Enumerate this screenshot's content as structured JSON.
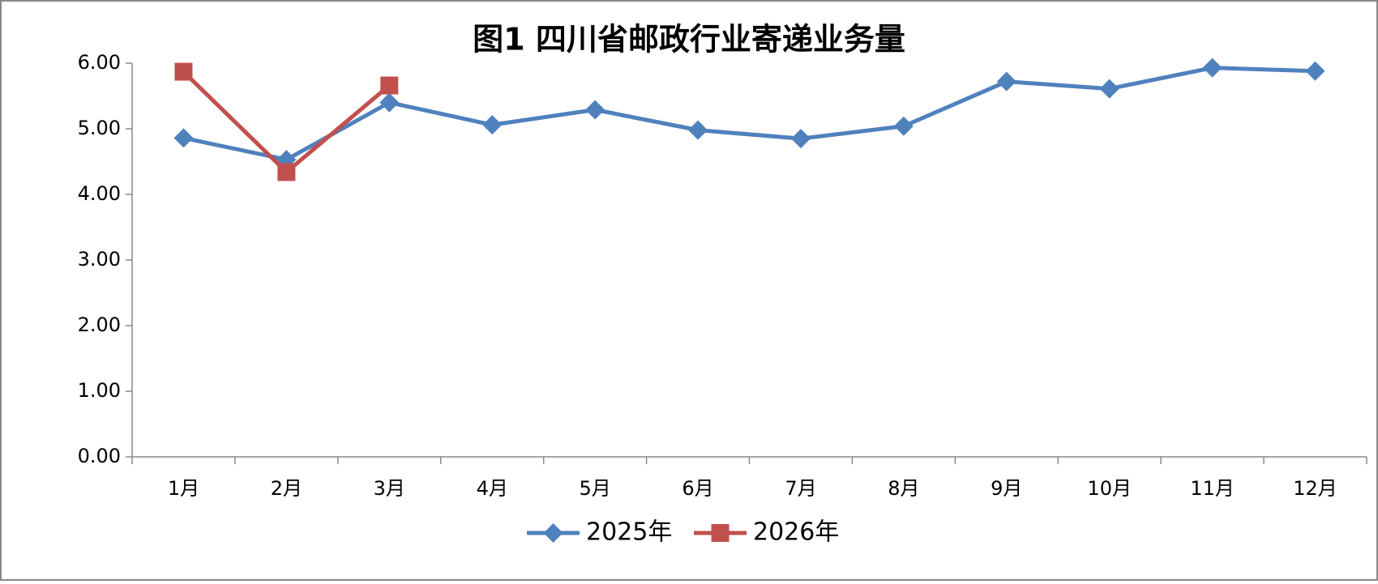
{
  "chart_data": {
    "type": "line",
    "title": "图1  四川省邮政行业寄递业务量",
    "categories": [
      "1月",
      "2月",
      "3月",
      "4月",
      "5月",
      "6月",
      "7月",
      "8月",
      "9月",
      "10月",
      "11月",
      "12月"
    ],
    "series": [
      {
        "name": "2025年",
        "color": "#4f81bd",
        "marker": "diamond",
        "values": [
          4.86,
          4.53,
          5.4,
          5.06,
          5.29,
          4.98,
          4.85,
          5.04,
          5.72,
          5.61,
          5.93,
          5.88
        ]
      },
      {
        "name": "2026年",
        "color": "#c0504d",
        "marker": "square",
        "values": [
          5.87,
          4.34,
          5.66,
          null,
          null,
          null,
          null,
          null,
          null,
          null,
          null,
          null
        ]
      }
    ],
    "ylim": [
      0,
      6
    ],
    "yticks": [
      {
        "value": 0,
        "label": "0.00"
      },
      {
        "value": 1,
        "label": "1.00"
      },
      {
        "value": 2,
        "label": "2.00"
      },
      {
        "value": 3,
        "label": "3.00"
      },
      {
        "value": 4,
        "label": "4.00"
      },
      {
        "value": 5,
        "label": "5.00"
      },
      {
        "value": 6,
        "label": "6.00"
      }
    ],
    "legend": "bottom"
  }
}
